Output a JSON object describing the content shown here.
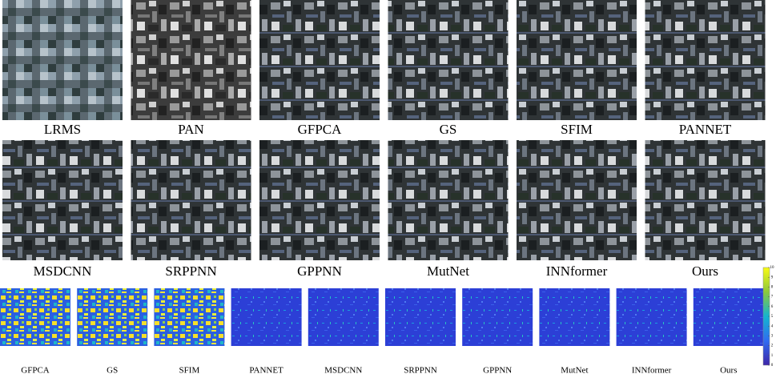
{
  "rows": [
    {
      "labels": [
        "LRMS",
        "PAN",
        "GFPCA",
        "GS",
        "SFIM",
        "PANNET"
      ]
    },
    {
      "labels": [
        "MSDCNN",
        "SRPPNN",
        "GPPNN",
        "MutNet",
        "INNformer",
        "Ours"
      ]
    },
    {
      "labels": [
        "GFPCA",
        "GS",
        "SFIM",
        "PANNET",
        "MSDCNN",
        "SRPPNN",
        "GPPNN",
        "MutNet",
        "INNformer",
        "Ours"
      ]
    }
  ],
  "colorbar": {
    "range": [
      0,
      10
    ],
    "ticks": [
      0,
      1,
      2,
      3,
      4,
      5,
      6,
      7,
      8,
      9,
      10
    ]
  }
}
